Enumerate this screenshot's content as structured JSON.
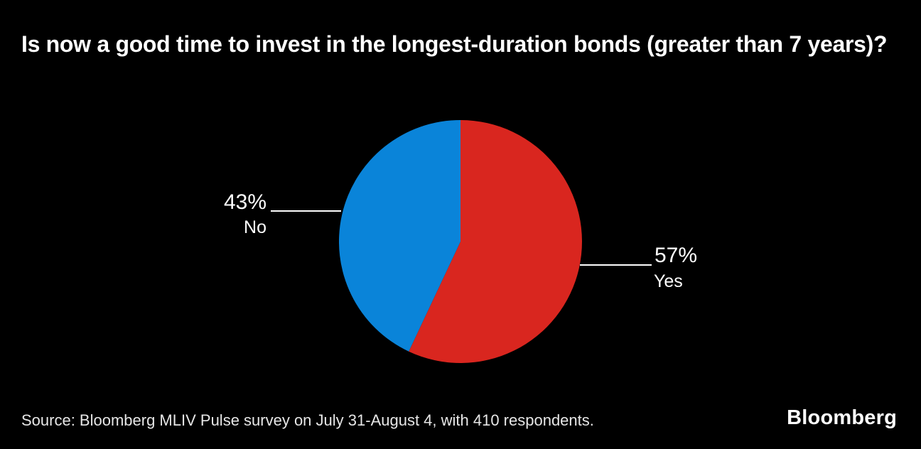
{
  "title": "Is now a good time to invest in the longest-duration bonds (greater than 7 years)?",
  "source": "Source: Bloomberg MLIV Pulse survey on July 31-August 4, with 410 respondents.",
  "logo": "Bloomberg",
  "colors": {
    "background": "#000000",
    "yes_slice": "#d9261f",
    "no_slice": "#0a84d9",
    "text": "#ffffff",
    "leader_line": "#ffffff"
  },
  "chart_data": {
    "type": "pie",
    "title": "Is now a good time to invest in the longest-duration bonds (greater than 7 years)?",
    "start_angle_deg": 0,
    "direction": "clockwise",
    "legend_position": "callout-labels",
    "slices": [
      {
        "label": "Yes",
        "value_pct": 57,
        "display": "57%",
        "color": "#d9261f"
      },
      {
        "label": "No",
        "value_pct": 43,
        "display": "43%",
        "color": "#0a84d9"
      }
    ]
  }
}
